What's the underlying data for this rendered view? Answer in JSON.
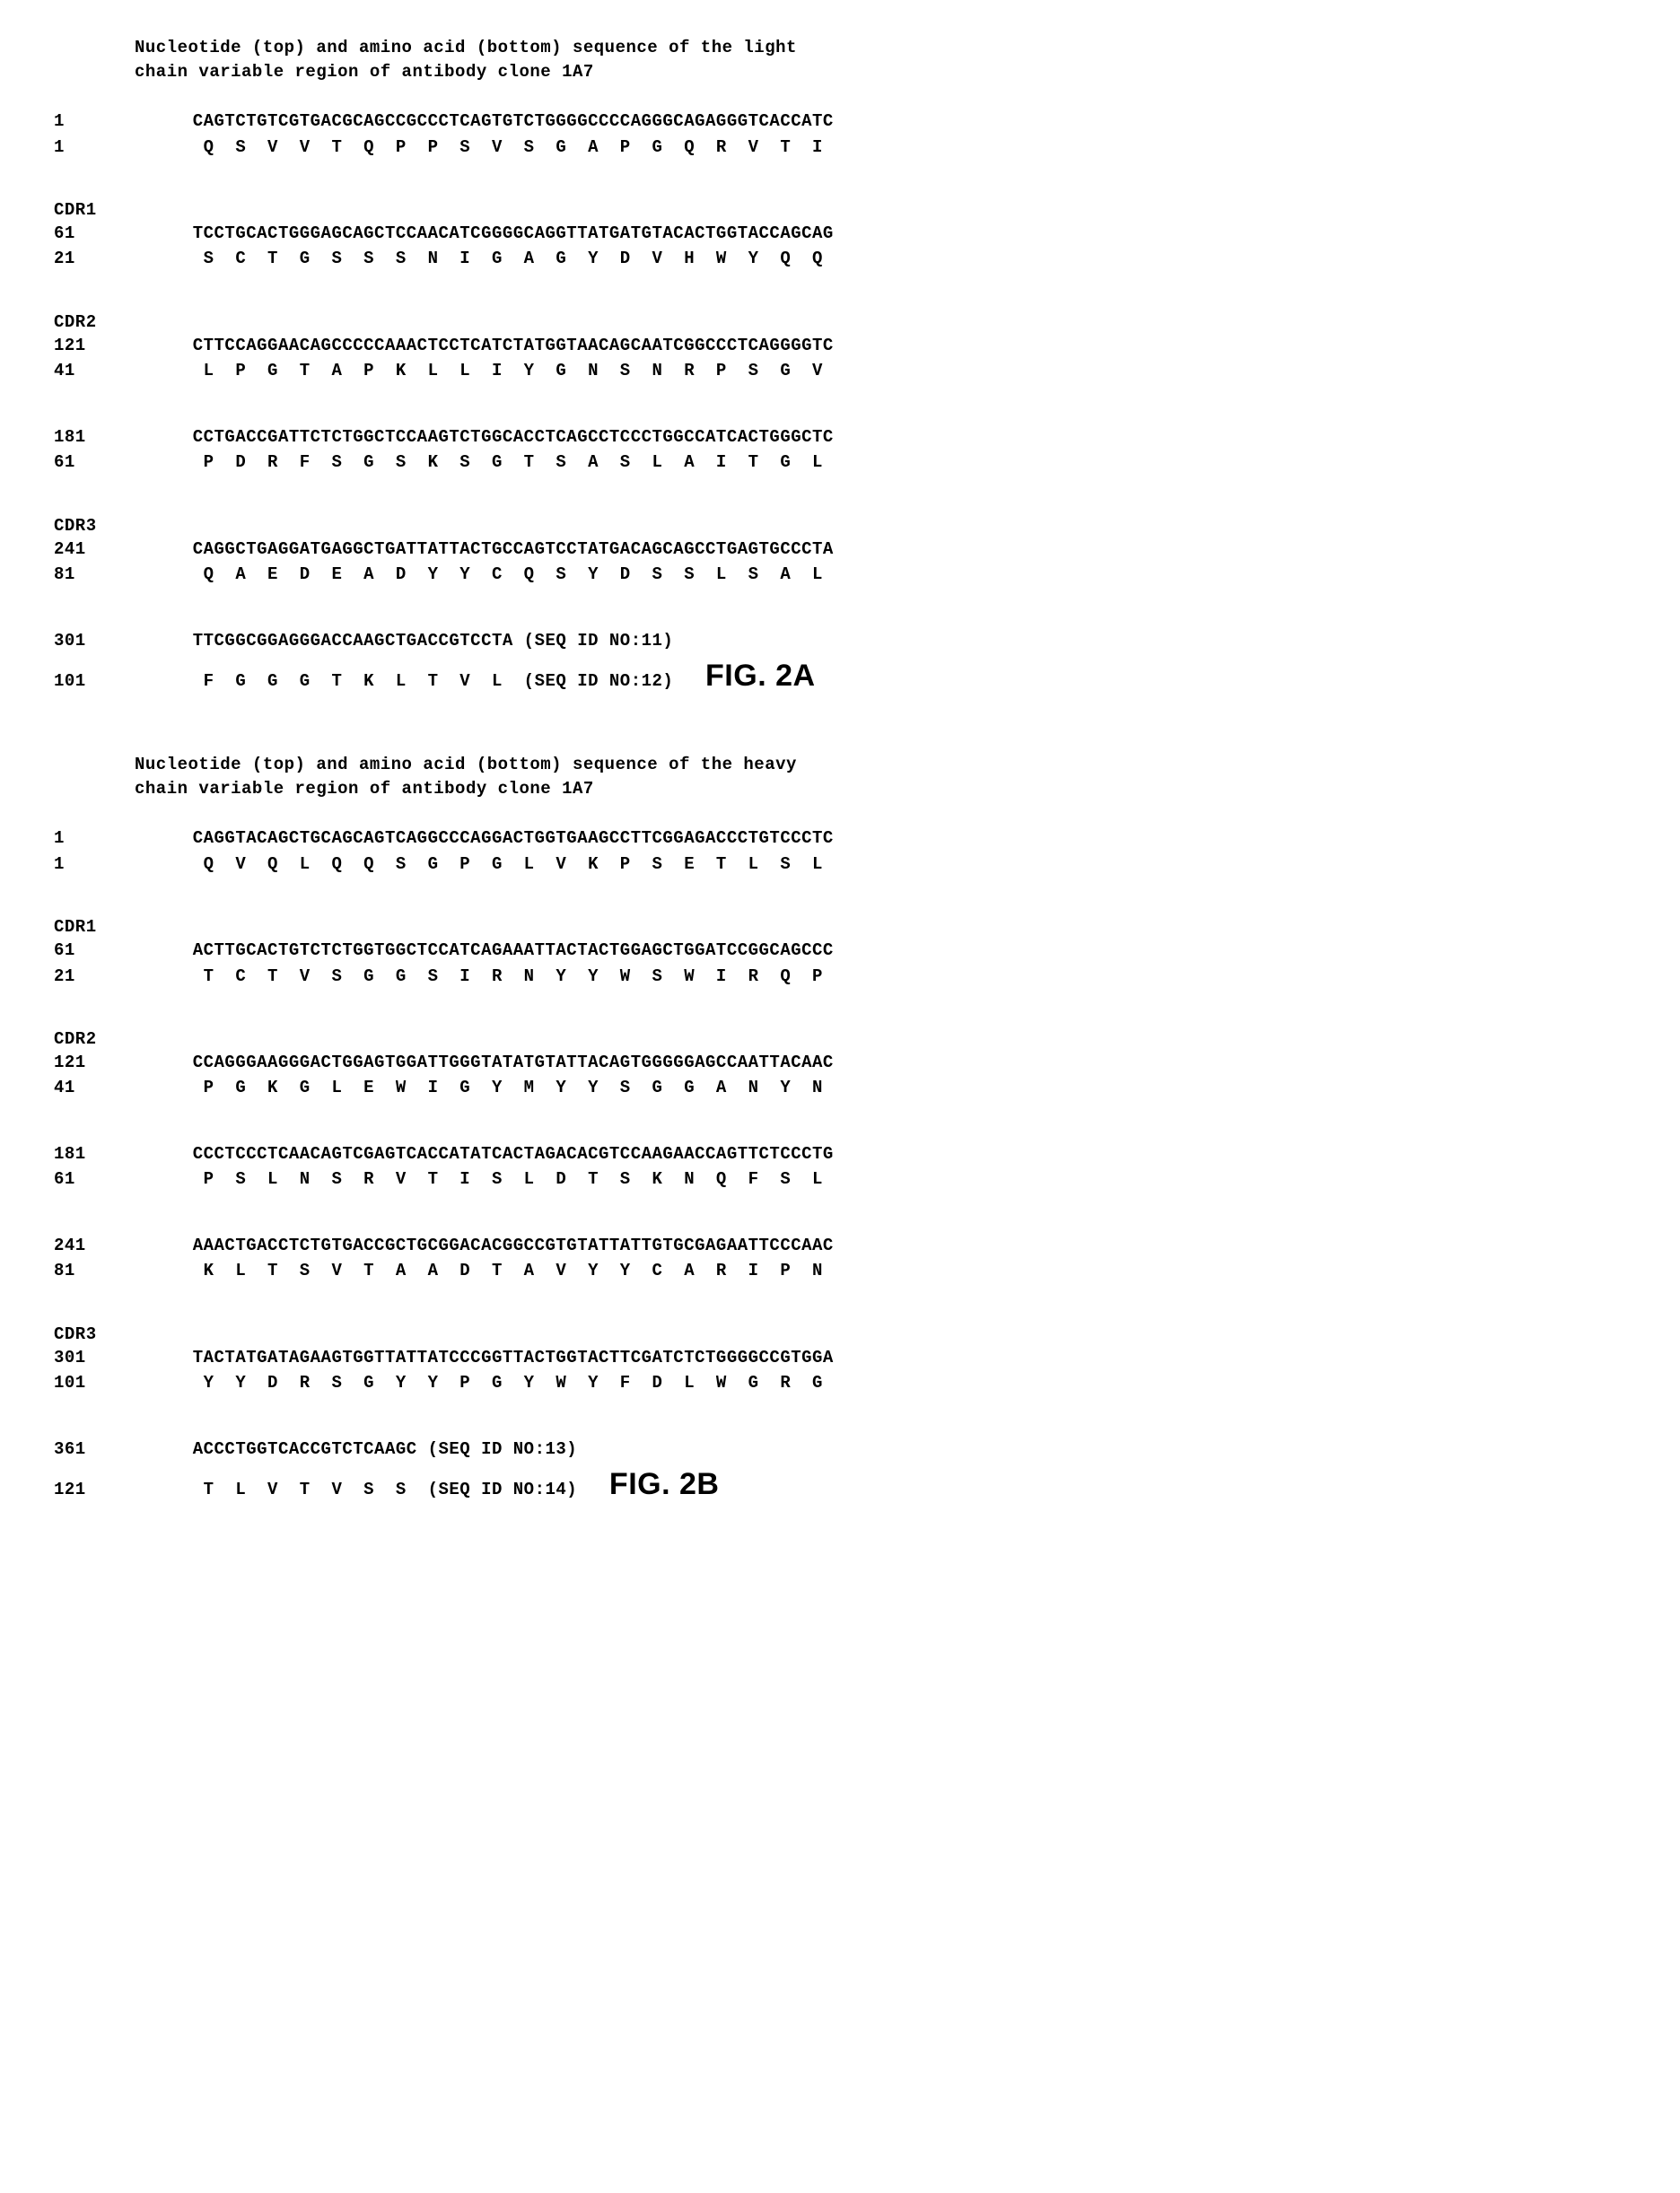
{
  "figA": {
    "title_line1": "Nucleotide (top) and amino acid (bottom) sequence of the light",
    "title_line2": "chain variable region of antibody clone 1A7",
    "blocks": [
      {
        "cdr": "",
        "cdr_indent": "",
        "n_pos": "1",
        "n_seq": "CAGTCTGTCGTGACGCAGCCGCCCTCAGTGTCTGGGGCCCCAGGGCAGAGGGTCACCATC",
        "a_pos": "1",
        "a_seq": " Q  S  V  V  T  Q  P  P  S  V  S  G  A  P  G  Q  R  V  T  I"
      },
      {
        "cdr": "CDR1",
        "cdr_indent": "                                 ",
        "n_pos": "61",
        "n_seq": "TCCTGCACTGGGAGCAGCTCCAACATCGGGGCAGGTTATGATGTACACTGGTACCAGCAG",
        "a_pos": "21",
        "a_seq": " S  C  T  G  S  S  S  N  I  G  A  G  Y  D  V  H  W  Y  Q  Q"
      },
      {
        "cdr": "CDR2",
        "cdr_indent": "                                                   ",
        "n_pos": "121",
        "n_seq": "CTTCCAGGAACAGCCCCCAAACTCCTCATCTATGGTAACAGCAATCGGCCCTCAGGGGTC",
        "a_pos": "41",
        "a_seq": " L  P  G  T  A  P  K  L  L  I  Y  G  N  S  N  R  P  S  G  V"
      },
      {
        "cdr": "",
        "cdr_indent": "",
        "n_pos": "181",
        "n_seq": "CCTGACCGATTCTCTGGCTCCAAGTCTGGCACCTCAGCCTCCCTGGCCATCACTGGGCTC",
        "a_pos": "61",
        "a_seq": " P  D  R  F  S  G  S  K  S  G  T  S  A  S  L  A  I  T  G  L"
      },
      {
        "cdr": "CDR3",
        "cdr_indent": "                                                   ",
        "n_pos": "241",
        "n_seq": "CAGGCTGAGGATGAGGCTGATTATTACTGCCAGTCCTATGACAGCAGCCTGAGTGCCCTA",
        "a_pos": "81",
        "a_seq": " Q  A  E  D  E  A  D  Y  Y  C  Q  S  Y  D  S  S  L  S  A  L"
      },
      {
        "cdr": "",
        "cdr_indent": "",
        "n_pos": "301",
        "n_seq": "TTCGGCGGAGGGACCAAGCTGACCGTCCTA (SEQ ID NO:11)",
        "a_pos": "101",
        "a_seq": " F  G  G  G  T  K  L  T  V  L  (SEQ ID NO:12)"
      }
    ],
    "fig_label": "FIG. 2A"
  },
  "figB": {
    "title_line1": "Nucleotide (top) and amino acid (bottom) sequence of the heavy",
    "title_line2": "chain variable region of antibody clone 1A7",
    "blocks": [
      {
        "cdr": "",
        "cdr_indent": "",
        "n_pos": "1",
        "n_seq": "CAGGTACAGCTGCAGCAGTCAGGCCCAGGACTGGTGAAGCCTTCGGAGACCCTGTCCCTC",
        "a_pos": "1",
        "a_seq": " Q  V  Q  L  Q  Q  S  G  P  G  L  V  K  P  S  E  T  L  S  L"
      },
      {
        "cdr": "CDR1",
        "cdr_indent": "                                       ",
        "n_pos": "61",
        "n_seq": "ACTTGCACTGTCTCTGGTGGCTCCATCAGAAATTACTACTGGAGCTGGATCCGGCAGCCC",
        "a_pos": "21",
        "a_seq": " T  C  T  V  S  G  G  S  I  R  N  Y  Y  W  S  W  I  R  Q  P"
      },
      {
        "cdr": "CDR2",
        "cdr_indent": "                                                         ",
        "n_pos": "121",
        "n_seq": "CCAGGGAAGGGACTGGAGTGGATTGGGTATATGTATTACAGTGGGGGAGCCAATTACAAC",
        "a_pos": "41",
        "a_seq": " P  G  K  G  L  E  W  I  G  Y  M  Y  Y  S  G  G  A  N  Y  N"
      },
      {
        "cdr": "",
        "cdr_indent": "",
        "n_pos": "181",
        "n_seq": "CCCTCCCTCAACAGTCGAGTCACCATATCACTAGACACGTCCAAGAACCAGTTCTCCCTG",
        "a_pos": "61",
        "a_seq": " P  S  L  N  S  R  V  T  I  S  L  D  T  S  K  N  Q  F  S  L"
      },
      {
        "cdr": "",
        "cdr_indent": "",
        "n_pos": "241",
        "n_seq": "AAACTGACCTCTGTGACCGCTGCGGACACGGCCGTGTATTATTGTGCGAGAATTCCCAAC",
        "a_pos": "81",
        "a_seq": " K  L  T  S  V  T  A  A  D  T  A  V  Y  Y  C  A  R  I  P  N"
      },
      {
        "cdr": "CDR3",
        "cdr_indent": "                   ",
        "n_pos": "301",
        "n_seq": "TACTATGATAGAAGTGGTTATTATCCCGGTTACTGGTACTTCGATCTCTGGGGCCGTGGA",
        "a_pos": "101",
        "a_seq": " Y  Y  D  R  S  G  Y  Y  P  G  Y  W  Y  F  D  L  W  G  R  G"
      },
      {
        "cdr": "",
        "cdr_indent": "",
        "n_pos": "361",
        "n_seq": "ACCCTGGTCACCGTCTCAAGC (SEQ ID NO:13)",
        "a_pos": "121",
        "a_seq": " T  L  V  T  V  S  S  (SEQ ID NO:14)"
      }
    ],
    "fig_label": "FIG. 2B"
  },
  "style": {
    "background": "#ffffff",
    "text_color": "#000000",
    "font_family": "Courier New, monospace",
    "font_size_main": 19,
    "font_size_fig": 34,
    "fig_font_family": "Arial, sans-serif",
    "pos_col_width": 7
  }
}
